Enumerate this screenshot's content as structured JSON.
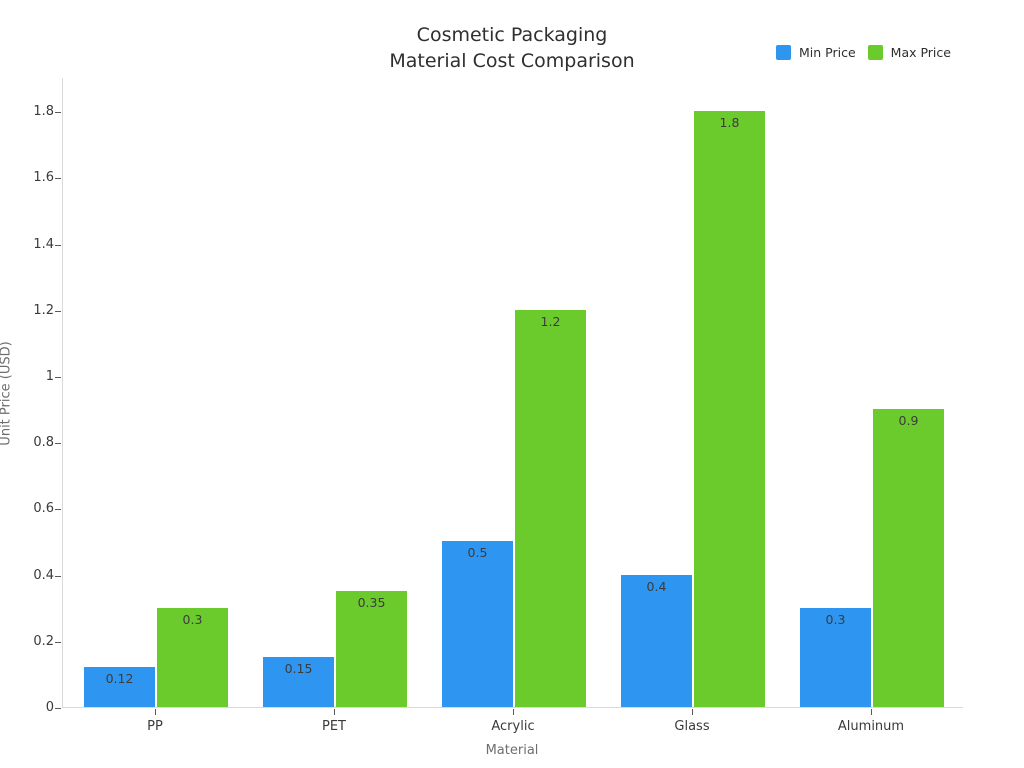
{
  "chart_data": {
    "type": "bar",
    "title_lines": [
      "Cosmetic Packaging",
      "Material Cost Comparison"
    ],
    "xlabel": "Material",
    "ylabel": "Unit Price (USD)",
    "categories": [
      "PP",
      "PET",
      "Acrylic",
      "Glass",
      "Aluminum"
    ],
    "series": [
      {
        "name": "Min Price",
        "color": "#2E96F0",
        "values": [
          0.12,
          0.15,
          0.5,
          0.4,
          0.3
        ],
        "labels": [
          "0.12",
          "0.15",
          "0.5",
          "0.4",
          "0.3"
        ]
      },
      {
        "name": "Max Price",
        "color": "#6CCB2C",
        "values": [
          0.3,
          0.35,
          1.2,
          1.8,
          0.9
        ],
        "labels": [
          "0.3",
          "0.35",
          "1.2",
          "1.8",
          "0.9"
        ]
      }
    ],
    "yticks": {
      "values": [
        0,
        0.2,
        0.4,
        0.6,
        0.8,
        1,
        1.2,
        1.4,
        1.6,
        1.8
      ],
      "labels": [
        "0",
        "0.2",
        "0.4",
        "0.6",
        "0.8",
        "1",
        "1.2",
        "1.4",
        "1.6",
        "1.8"
      ]
    },
    "ylim": [
      0,
      1.903
    ],
    "grid": false,
    "legend_position": "top-right"
  }
}
